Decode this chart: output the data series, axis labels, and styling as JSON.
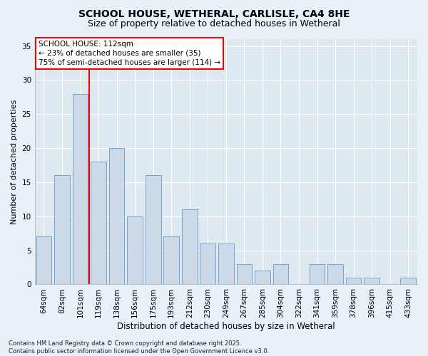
{
  "title": "SCHOOL HOUSE, WETHERAL, CARLISLE, CA4 8HE",
  "subtitle": "Size of property relative to detached houses in Wetheral",
  "xlabel": "Distribution of detached houses by size in Wetheral",
  "ylabel": "Number of detached properties",
  "categories": [
    "64sqm",
    "82sqm",
    "101sqm",
    "119sqm",
    "138sqm",
    "156sqm",
    "175sqm",
    "193sqm",
    "212sqm",
    "230sqm",
    "249sqm",
    "267sqm",
    "285sqm",
    "304sqm",
    "322sqm",
    "341sqm",
    "359sqm",
    "378sqm",
    "396sqm",
    "415sqm",
    "433sqm"
  ],
  "values": [
    7,
    16,
    28,
    18,
    20,
    10,
    16,
    7,
    11,
    6,
    6,
    3,
    2,
    3,
    0,
    3,
    3,
    1,
    1,
    0,
    1
  ],
  "bar_color": "#ccd9e8",
  "bar_edge_color": "#6699cc",
  "redline_index": 2.5,
  "annotation_text": "SCHOOL HOUSE: 112sqm\n← 23% of detached houses are smaller (35)\n75% of semi-detached houses are larger (114) →",
  "annotation_fontsize": 7.5,
  "ylim": [
    0,
    36
  ],
  "yticks": [
    0,
    5,
    10,
    15,
    20,
    25,
    30,
    35
  ],
  "plot_bg_color": "#dde8f0",
  "fig_bg_color": "#e8f0f8",
  "grid_color": "#ffffff",
  "footer": "Contains HM Land Registry data © Crown copyright and database right 2025.\nContains public sector information licensed under the Open Government Licence v3.0.",
  "title_fontsize": 10,
  "subtitle_fontsize": 9,
  "xlabel_fontsize": 8.5,
  "ylabel_fontsize": 8,
  "tick_fontsize": 7.5,
  "footer_fontsize": 6
}
